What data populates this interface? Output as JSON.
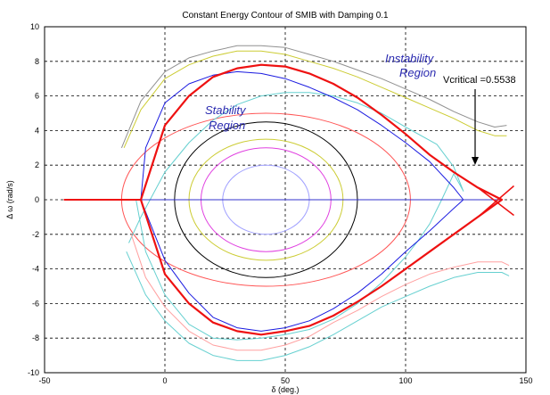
{
  "chart_data": {
    "type": "line",
    "title": "Constant Energy Contour of SMIB with Damping 0.1",
    "xlabel": "δ (deg.)",
    "ylabel": "Δ ω (rad/s)",
    "xlim": [
      -50,
      150
    ],
    "ylim": [
      -10,
      10
    ],
    "xticks": [
      "-50",
      "0",
      "50",
      "100",
      "150"
    ],
    "yticks": [
      "10",
      "8",
      "6",
      "4",
      "2",
      "0",
      "-2",
      "-4",
      "-6",
      "-8",
      "-10"
    ],
    "grid": true,
    "annotations": {
      "instability": [
        "Instability",
        "Region"
      ],
      "stability": [
        "Stability",
        "Region"
      ],
      "vcritical": "Vcritical =0.5538"
    },
    "closed_contours": [
      {
        "color": "#a0a0ff",
        "center": 42,
        "dx": 18,
        "dy": 2.0
      },
      {
        "color": "#e040e0",
        "center": 42,
        "dx": 27,
        "dy": 3.0
      },
      {
        "color": "#cccc33",
        "center": 42,
        "dx": 32,
        "dy": 3.5
      },
      {
        "color": "#000000",
        "center": 42,
        "dx": 38,
        "dy": 4.5
      },
      {
        "color": "#ff5555",
        "center": 42,
        "dx": 60,
        "dy": 5.0
      }
    ],
    "open_contours": [
      {
        "color": "#66d0d0",
        "x": [
          -12,
          -8,
          0,
          10,
          20,
          30,
          40,
          50,
          60,
          70,
          80,
          90,
          100,
          105,
          110,
          115,
          120,
          124,
          120,
          113,
          100,
          90,
          80,
          70,
          60,
          50,
          40,
          30,
          20,
          10,
          0,
          -10,
          -15
        ],
        "y": [
          0,
          -3.0,
          -5.5,
          -7.2,
          -8.0,
          -8.1,
          -8.0,
          -7.8,
          -7.5,
          -6.9,
          -6.0,
          -4.8,
          -3.3,
          -2.4,
          -1.4,
          0,
          1.5,
          0.5,
          1.9,
          3.2,
          4.2,
          5.0,
          5.6,
          6.0,
          6.2,
          6.2,
          6.0,
          5.5,
          4.6,
          3.3,
          1.6,
          -1.0,
          -2.5
        ]
      },
      {
        "color": "#1a1ae0",
        "x": [
          -10,
          0,
          10,
          20,
          30,
          40,
          50,
          60,
          70,
          80,
          90,
          100,
          110,
          120,
          124,
          120,
          110,
          100,
          90,
          80,
          70,
          60,
          50,
          40,
          30,
          20,
          10,
          0,
          -8,
          -10
        ],
        "y": [
          0,
          -3.5,
          -5.4,
          -6.8,
          -7.4,
          -7.6,
          -7.4,
          -7.0,
          -6.3,
          -5.4,
          -4.3,
          -3.0,
          -1.8,
          -0.5,
          0,
          0.7,
          2.2,
          3.3,
          4.3,
          5.2,
          5.9,
          6.5,
          7.0,
          7.3,
          7.4,
          7.2,
          6.7,
          5.6,
          3.0,
          0
        ]
      },
      {
        "color": "#ffa0a0",
        "x": [
          -14,
          -8,
          0,
          10,
          20,
          30,
          40,
          50,
          60,
          70,
          80,
          90,
          100,
          110,
          120,
          130,
          140,
          143
        ],
        "y": [
          -2.0,
          -4.5,
          -6.2,
          -7.6,
          -8.4,
          -8.7,
          -8.7,
          -8.4,
          -7.9,
          -7.1,
          -6.4,
          -5.6,
          -4.9,
          -4.3,
          -3.9,
          -3.6,
          -3.6,
          -3.8
        ]
      },
      {
        "color": "#66d0d0",
        "x": [
          -16,
          -8,
          0,
          10,
          20,
          30,
          40,
          50,
          60,
          70,
          80,
          90,
          100,
          110,
          120,
          130,
          140,
          143
        ],
        "y": [
          -3.0,
          -5.5,
          -7.0,
          -8.3,
          -9.0,
          -9.3,
          -9.3,
          -9.0,
          -8.5,
          -7.8,
          -7.0,
          -6.2,
          -5.6,
          -5.0,
          -4.5,
          -4.2,
          -4.2,
          -4.4
        ]
      },
      {
        "color": "#cccc33",
        "x": [
          -17,
          -10,
          0,
          10,
          20,
          30,
          40,
          50,
          60,
          70,
          80,
          90,
          100,
          110,
          120,
          130,
          137,
          142
        ],
        "y": [
          3.0,
          5.2,
          7.0,
          7.8,
          8.3,
          8.6,
          8.6,
          8.4,
          8.0,
          7.6,
          7.1,
          6.5,
          5.9,
          5.3,
          4.7,
          4.0,
          3.7,
          3.7
        ]
      },
      {
        "color": "#909090",
        "x": [
          -18,
          -10,
          0,
          10,
          20,
          30,
          40,
          50,
          60,
          70,
          80,
          90,
          100,
          110,
          120,
          130,
          137,
          142
        ],
        "y": [
          3.0,
          5.7,
          7.4,
          8.2,
          8.6,
          8.9,
          8.9,
          8.8,
          8.4,
          8.0,
          7.5,
          7.0,
          6.4,
          5.8,
          5.1,
          4.5,
          4.2,
          4.3
        ]
      }
    ],
    "separatrix": {
      "color": "#ee1111",
      "x": [
        -10,
        0,
        10,
        20,
        30,
        40,
        50,
        60,
        70,
        80,
        90,
        100,
        110,
        120,
        130,
        140,
        130,
        120,
        110,
        100,
        90,
        80,
        70,
        60,
        50,
        40,
        30,
        20,
        10,
        0,
        -10,
        -10
      ],
      "y": [
        0,
        4.3,
        6.0,
        7.1,
        7.6,
        7.8,
        7.7,
        7.3,
        6.7,
        5.9,
        4.9,
        3.8,
        2.6,
        1.6,
        0.7,
        0,
        -1.0,
        -2.0,
        -3.0,
        -4.0,
        -5.0,
        -5.9,
        -6.7,
        -7.3,
        -7.6,
        -7.8,
        -7.6,
        -7.1,
        -6.0,
        -4.3,
        0,
        0
      ]
    },
    "separatrix_tail": {
      "color": "#ee1111",
      "x": [
        -42,
        -10
      ],
      "y": [
        0,
        0
      ]
    },
    "saddle_cross": {
      "color": "#ee1111",
      "x": [
        130,
        145
      ],
      "y": [
        0.7,
        -0.9
      ]
    },
    "zero_line": {
      "color": "#3333cc",
      "x": [
        -10,
        140
      ],
      "y": [
        0,
        0
      ]
    }
  }
}
